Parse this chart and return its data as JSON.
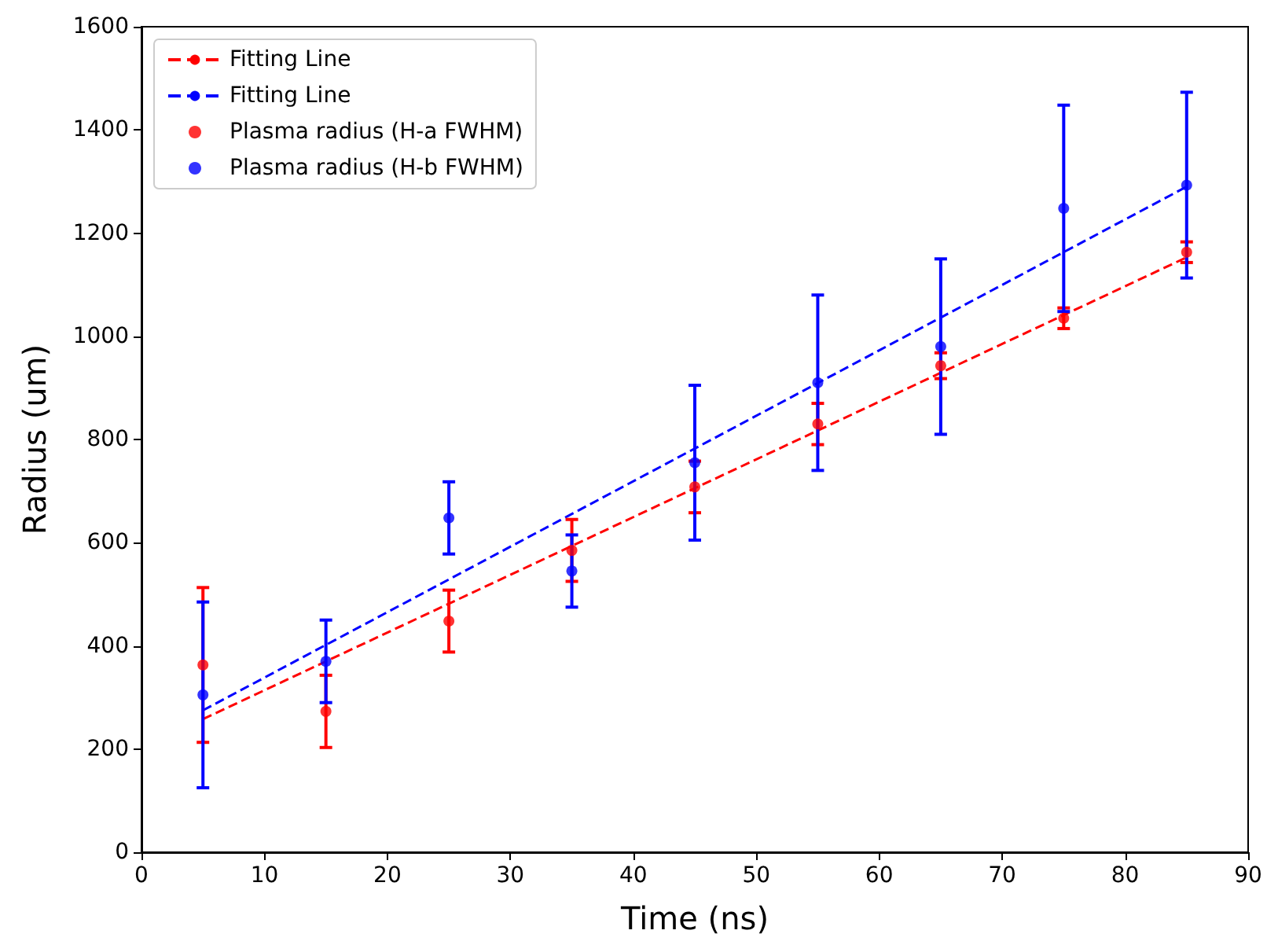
{
  "chart_data": {
    "type": "scatter",
    "xlabel": "Time (ns)",
    "ylabel": "Radius (um)",
    "xlim": [
      0,
      90
    ],
    "xticks": [
      0,
      10,
      20,
      30,
      40,
      50,
      60,
      70,
      80,
      90
    ],
    "ylim": [
      0,
      1600
    ],
    "yticks": [
      0,
      200,
      400,
      600,
      800,
      1000,
      1200,
      1400,
      1600
    ],
    "grid": false,
    "legend": "top left",
    "marker": "circle",
    "series": [
      {
        "type": "line",
        "name": "Fitting Line",
        "color": "#ff0000",
        "line_style": "dashed",
        "marker": "none",
        "x": [
          5,
          85
        ],
        "values": [
          258,
          1153
        ]
      },
      {
        "type": "line",
        "name": "Fitting Line",
        "color": "#0000ff",
        "line_style": "dashed",
        "marker": "none",
        "x": [
          5,
          85
        ],
        "values": [
          275,
          1290
        ]
      },
      {
        "name": "Plasma radius (H-a FWHM)",
        "color": "#ff0000",
        "x": [
          5,
          15,
          25,
          35,
          45,
          55,
          65,
          75,
          85
        ],
        "values": [
          363,
          273,
          448,
          585,
          708,
          830,
          943,
          1035,
          1163
        ],
        "errors": [
          150,
          70,
          60,
          60,
          50,
          40,
          25,
          20,
          20
        ]
      },
      {
        "name": "Plasma radius (H-b FWHM)",
        "color": "#0000ff",
        "x": [
          5,
          15,
          25,
          35,
          45,
          55,
          65,
          75,
          85
        ],
        "values": [
          305,
          370,
          648,
          545,
          755,
          910,
          980,
          1248,
          1293
        ],
        "errors": [
          180,
          80,
          70,
          70,
          150,
          170,
          170,
          200,
          180
        ]
      }
    ]
  }
}
